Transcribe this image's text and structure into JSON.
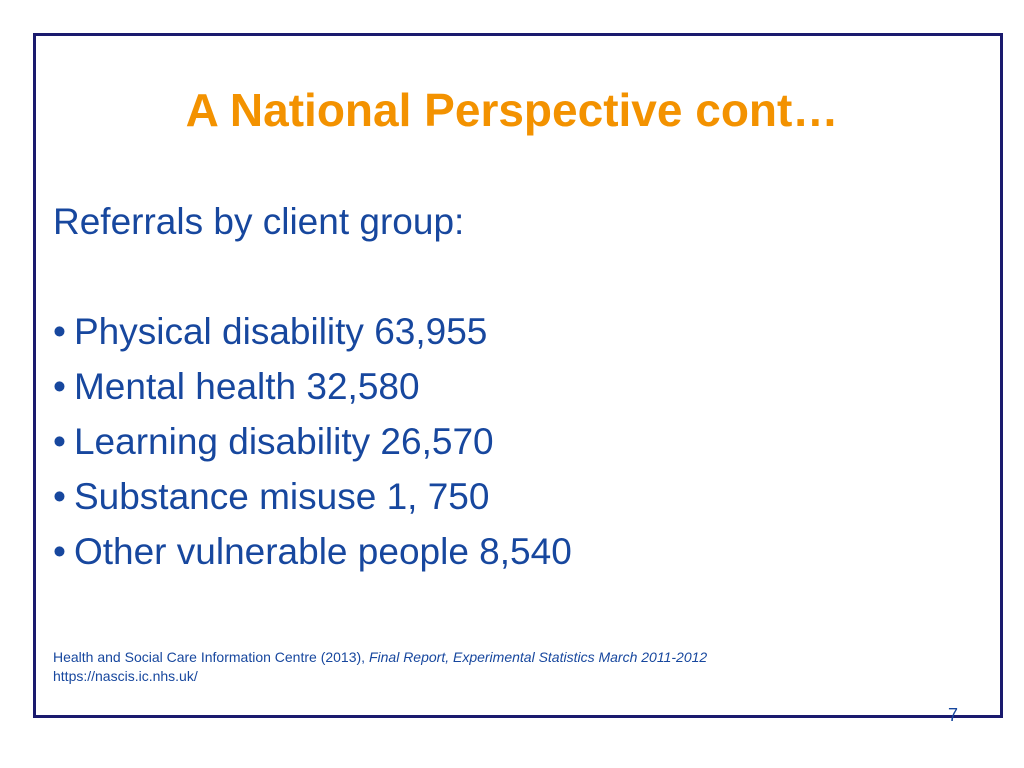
{
  "slide": {
    "title": "A National Perspective cont…",
    "subtitle": "Referrals by client group:",
    "bullet_symbol": "•",
    "bullets": [
      {
        "label": "Physical disability 63,955"
      },
      {
        "label": "Mental health 32,580"
      },
      {
        "label": "Learning disability 26,570"
      },
      {
        "label": "Substance misuse 1, 750"
      },
      {
        "label": "Other vulnerable people 8,540"
      }
    ],
    "citation": {
      "text": "Health and Social Care Information Centre (2013),",
      "italic": "Final Report, Experimental Statistics March 2011-2012",
      "url": "https://nascis.ic.nhs.uk/"
    },
    "page_number": "7"
  },
  "colors": {
    "title": "#f39200",
    "body_text": "#17479e",
    "border": "#1a1a6e"
  }
}
